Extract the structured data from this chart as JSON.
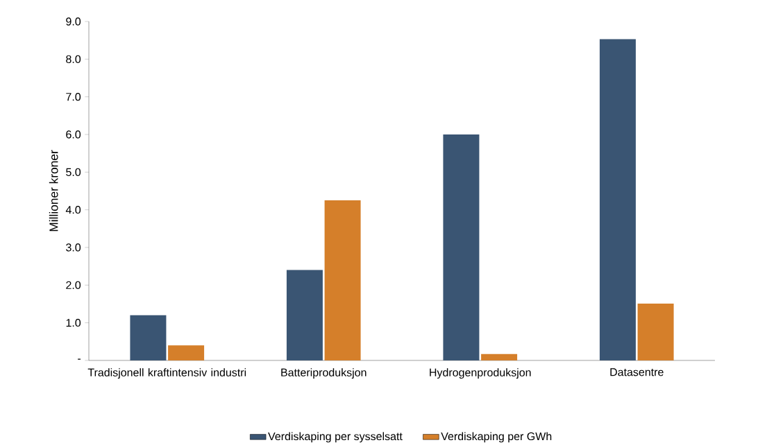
{
  "chart_data": {
    "type": "bar",
    "ylabel": "Millioner kroner",
    "categories": [
      "Tradisjonell kraftintensiv industri",
      "Batteriproduksjon",
      "Hydrogenproduksjon",
      "Datasentre"
    ],
    "series": [
      {
        "name": "Verdiskaping per sysselsatt",
        "color": "#3a5573",
        "values": [
          1.2,
          2.4,
          6.0,
          8.53
        ]
      },
      {
        "name": "Verdiskaping per GWh",
        "color": "#d57f2a",
        "values": [
          0.4,
          4.25,
          0.17,
          1.51
        ]
      }
    ],
    "ylim": [
      0,
      9
    ],
    "yticks": [
      {
        "value": 0,
        "label": "-"
      },
      {
        "value": 1,
        "label": "1.0"
      },
      {
        "value": 2,
        "label": "2.0"
      },
      {
        "value": 3,
        "label": "3.0"
      },
      {
        "value": 4,
        "label": "4.0"
      },
      {
        "value": 5,
        "label": "5.0"
      },
      {
        "value": 6,
        "label": "6.0"
      },
      {
        "value": 7,
        "label": "7.0"
      },
      {
        "value": 8,
        "label": "8.0"
      },
      {
        "value": 9,
        "label": "9.0"
      }
    ],
    "grid": false,
    "legend": "bottom"
  }
}
